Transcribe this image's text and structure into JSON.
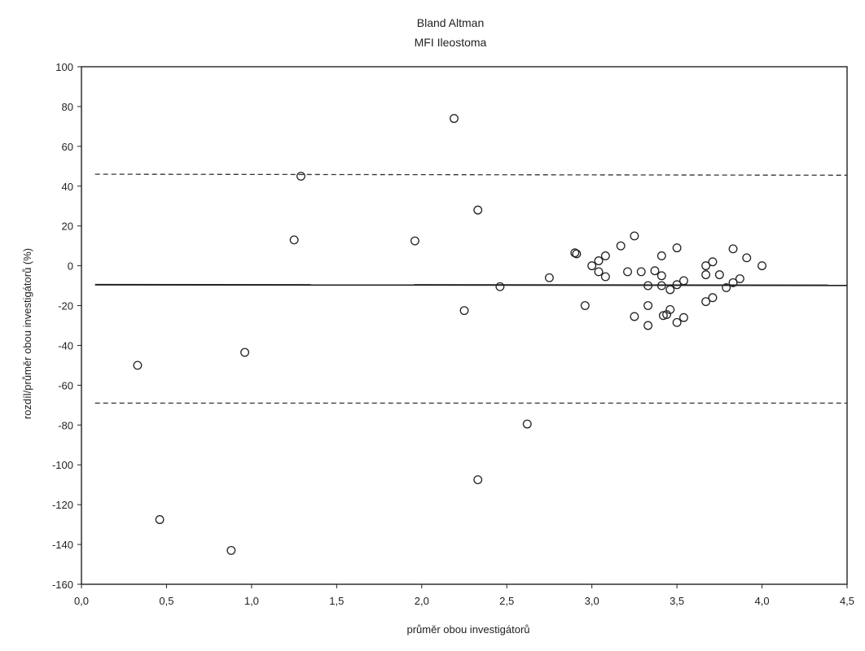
{
  "chart_data": {
    "type": "scatter",
    "title": "Bland Altman",
    "subtitle": "MFI Ileostoma",
    "xlabel": "průměr obou investigátorů",
    "ylabel": "rozdíl/průměr obou investigátorů (%)",
    "xlim": [
      0,
      4.5
    ],
    "ylim": [
      -160,
      100
    ],
    "x_ticks": [
      0,
      0.5,
      1.0,
      1.5,
      2.0,
      2.5,
      3.0,
      3.5,
      4.0,
      4.5
    ],
    "x_tick_labels": [
      "0,0",
      "0,5",
      "1,0",
      "1,5",
      "2,0",
      "2,5",
      "3,0",
      "3,5",
      "4,0",
      "4,5"
    ],
    "y_ticks": [
      100,
      80,
      60,
      40,
      20,
      0,
      -20,
      -40,
      -60,
      -80,
      -100,
      -120,
      -140,
      -160
    ],
    "y_tick_labels": [
      "100",
      "80",
      "60",
      "40",
      "20",
      "0",
      "-20",
      "-40",
      "-60",
      "-80",
      "-100",
      "-120",
      "-140",
      "-160"
    ],
    "grid": false,
    "legend": false,
    "mean_line": {
      "x": [
        0.08,
        4.5
      ],
      "y": [
        -9.5,
        -9.8
      ]
    },
    "upper_limit": {
      "x": [
        0.08,
        4.5
      ],
      "y": [
        46,
        45.5
      ]
    },
    "lower_limit": {
      "x": [
        0.08,
        4.5
      ],
      "y": [
        -69,
        -69
      ]
    },
    "points": [
      [
        0.33,
        -50
      ],
      [
        0.46,
        -127.5
      ],
      [
        0.88,
        -143
      ],
      [
        0.96,
        -43.5
      ],
      [
        1.25,
        13
      ],
      [
        1.29,
        45
      ],
      [
        1.96,
        12.5
      ],
      [
        2.19,
        74
      ],
      [
        2.25,
        -22.5
      ],
      [
        2.33,
        28
      ],
      [
        2.33,
        -107.5
      ],
      [
        2.46,
        -10.5
      ],
      [
        2.62,
        -79.5
      ],
      [
        2.75,
        -6
      ],
      [
        2.9,
        6.5
      ],
      [
        2.91,
        6
      ],
      [
        2.96,
        -20
      ],
      [
        3.0,
        0
      ],
      [
        3.04,
        2.5
      ],
      [
        3.04,
        -3
      ],
      [
        3.08,
        5
      ],
      [
        3.08,
        -5.5
      ],
      [
        3.17,
        10
      ],
      [
        3.21,
        -3
      ],
      [
        3.25,
        15
      ],
      [
        3.25,
        -25.5
      ],
      [
        3.29,
        -3
      ],
      [
        3.33,
        -10
      ],
      [
        3.33,
        -20
      ],
      [
        3.33,
        -30
      ],
      [
        3.37,
        -2.5
      ],
      [
        3.41,
        5
      ],
      [
        3.41,
        -5
      ],
      [
        3.41,
        -10
      ],
      [
        3.42,
        -25
      ],
      [
        3.44,
        -24.5
      ],
      [
        3.46,
        -12
      ],
      [
        3.46,
        -22
      ],
      [
        3.5,
        -9.5
      ],
      [
        3.5,
        9
      ],
      [
        3.5,
        -28.5
      ],
      [
        3.54,
        -7.5
      ],
      [
        3.54,
        -26
      ],
      [
        3.67,
        0
      ],
      [
        3.67,
        -4.5
      ],
      [
        3.67,
        -18
      ],
      [
        3.71,
        2
      ],
      [
        3.71,
        -16
      ],
      [
        3.75,
        -4.5
      ],
      [
        3.79,
        -11
      ],
      [
        3.83,
        8.5
      ],
      [
        3.83,
        -8.5
      ],
      [
        3.87,
        -6.5
      ],
      [
        3.91,
        4
      ],
      [
        4.0,
        0
      ]
    ]
  }
}
